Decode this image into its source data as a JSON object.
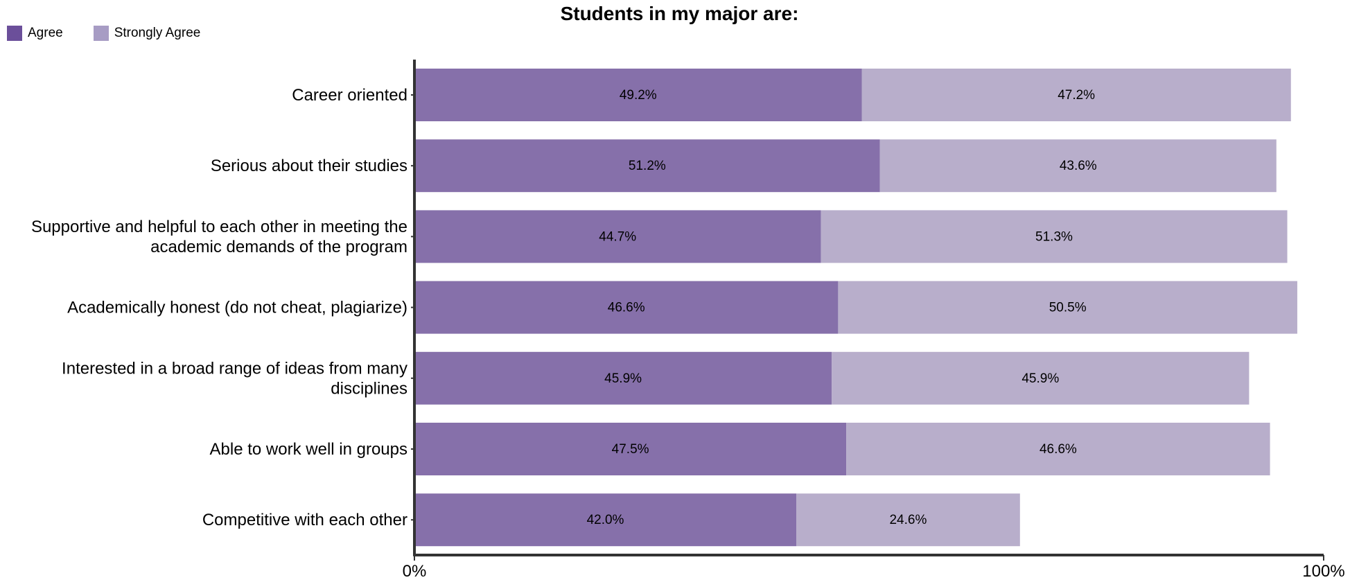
{
  "chart_data": {
    "type": "bar",
    "orientation": "horizontal",
    "stacked": true,
    "title": "Students in my major are:",
    "categories": [
      [
        "Career oriented"
      ],
      [
        "Serious about their studies"
      ],
      [
        "Supportive and helpful to each other in meeting the",
        "academic demands of the program"
      ],
      [
        "Academically honest (do not cheat, plagiarize)"
      ],
      [
        "Interested in a broad range of ideas from many",
        "disciplines"
      ],
      [
        "Able to work well in groups"
      ],
      [
        "Competitive with each other"
      ]
    ],
    "series": [
      {
        "name": "Agree",
        "color": "#8670aa",
        "values": [
          49.2,
          51.2,
          44.7,
          46.6,
          45.9,
          47.5,
          42.0
        ],
        "labels": [
          "49.2%",
          "51.2%",
          "44.7%",
          "46.6%",
          "45.9%",
          "47.5%",
          "42.0%"
        ]
      },
      {
        "name": "Strongly Agree",
        "color": "#b8aecb",
        "values": [
          47.2,
          43.6,
          51.3,
          50.5,
          45.9,
          46.6,
          24.6
        ],
        "labels": [
          "47.2%",
          "43.6%",
          "51.3%",
          "50.5%",
          "45.9%",
          "46.6%",
          "24.6%"
        ]
      }
    ],
    "legend": {
      "position": "top-left",
      "swatch_colors": [
        "#6b4f9a",
        "#a79cc4"
      ]
    },
    "xlim": [
      0,
      100
    ],
    "xticks": [
      {
        "value": 0,
        "label": "0%"
      },
      {
        "value": 100,
        "label": "100%"
      }
    ],
    "grid": false
  }
}
